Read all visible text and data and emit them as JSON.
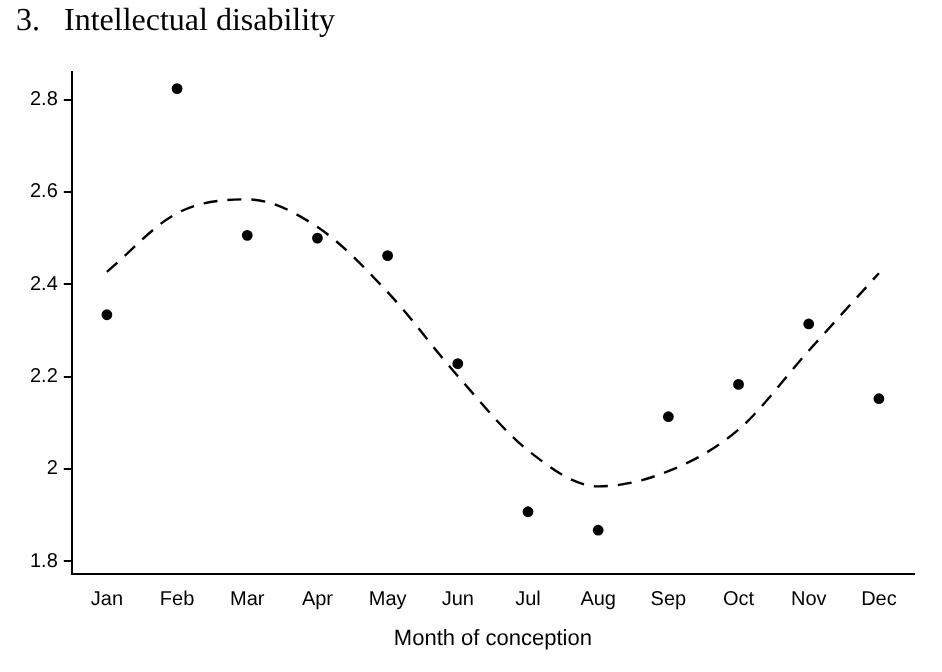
{
  "chart_data": {
    "type": "scatter",
    "title": "3.   Intellectual disability",
    "xlabel": "Month of conception",
    "categories": [
      "Jan",
      "Feb",
      "Mar",
      "Apr",
      "May",
      "Jun",
      "Jul",
      "Aug",
      "Sep",
      "Oct",
      "Nov",
      "Dec"
    ],
    "series": [
      {
        "color": "#000000",
        "marker": "circle",
        "values": [
          2.334,
          2.824,
          2.506,
          2.5,
          2.462,
          2.228,
          1.907,
          1.867,
          2.113,
          2.183,
          2.314,
          2.152
        ]
      },
      {
        "type": "line",
        "color": "#000000",
        "marker": "none",
        "line_style": "dashed",
        "values": [
          2.427,
          2.554,
          2.584,
          2.524,
          2.383,
          2.201,
          2.04,
          1.962,
          1.995,
          2.085,
          2.256,
          2.424
        ]
      }
    ],
    "ylim": [
      1.773,
      2.86
    ],
    "yticks": [
      1.8,
      2,
      2.2,
      2.4,
      2.6,
      2.8
    ],
    "grid": false,
    "legend": false
  }
}
